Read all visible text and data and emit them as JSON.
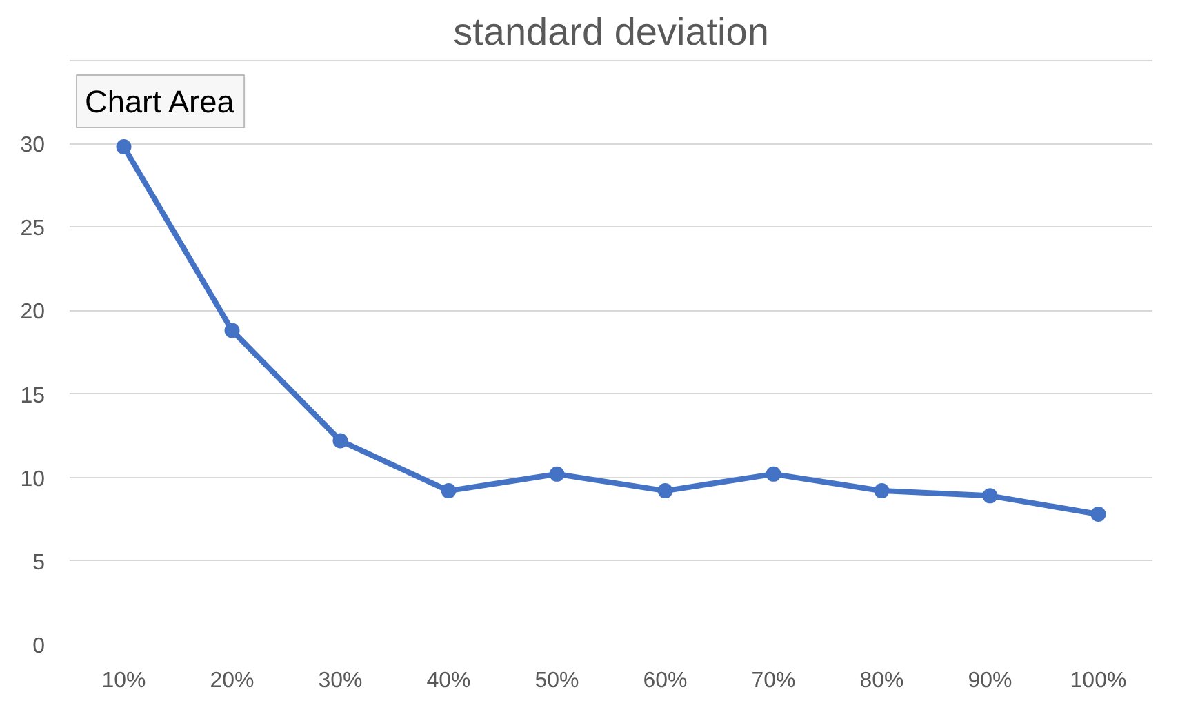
{
  "chart_data": {
    "type": "line",
    "title": "standard deviation",
    "categories": [
      "10%",
      "20%",
      "30%",
      "40%",
      "50%",
      "60%",
      "70%",
      "80%",
      "90%",
      "100%"
    ],
    "series": [
      {
        "color": "#4472c4",
        "values": [
          29.8,
          18.8,
          12.2,
          9.2,
          10.2,
          9.2,
          10.2,
          9.2,
          8.9,
          7.8
        ]
      }
    ],
    "ylim": [
      0,
      35
    ],
    "yticks": [
      0,
      5,
      10,
      15,
      20,
      25,
      30,
      {
        "value": 35,
        "label": null
      }
    ],
    "grid": "y",
    "marker": "circle",
    "line_style": "solid",
    "annotations": [
      "Chart Area"
    ]
  }
}
